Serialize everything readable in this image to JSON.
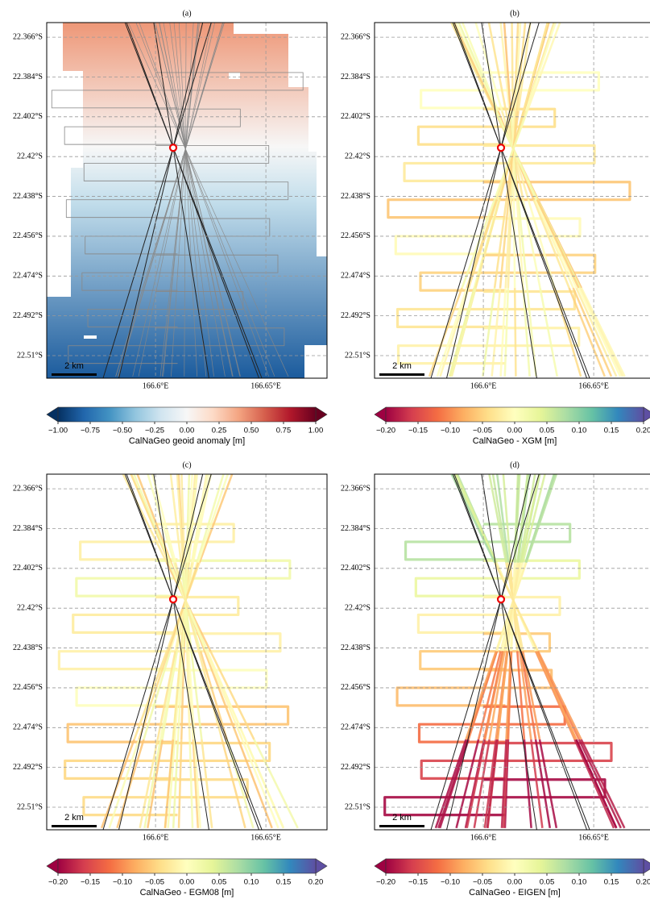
{
  "panels": [
    {
      "label": "(a)",
      "colorbar_label": "CalNaGeo geoid anomaly [m]",
      "colormap": "RdBu_r",
      "clim": [
        -1,
        1
      ],
      "colorbar_ticks": [
        {
          "value": -1,
          "label": "−1.00"
        },
        {
          "value": -0.75,
          "label": "−0.75"
        },
        {
          "value": -0.5,
          "label": "−0.50"
        },
        {
          "value": -0.25,
          "label": "−0.25"
        },
        {
          "value": 0,
          "label": "0.00"
        },
        0.25,
        {
          "value": 0.5,
          "label": "0.50"
        },
        0.75,
        {
          "value": 1,
          "label": "1.00"
        }
      ]
    },
    {
      "label": "(b)",
      "colorbar_label": "CalNaGeo - XGM [m]",
      "colormap": "Spectral",
      "clim": [
        -0.2,
        0.2
      ],
      "colorbar_ticks": [
        {
          "value": -0.2,
          "label": "−0.20"
        },
        {
          "value": -0.15,
          "label": "−0.15"
        },
        {
          "value": -0.1,
          "label": "−0.10"
        },
        {
          "value": -0.05,
          "label": "−0.05"
        },
        {
          "value": 0,
          "label": "0.00"
        },
        0.05,
        {
          "value": 0.1,
          "label": "0.10"
        },
        0.15,
        {
          "value": 0.2,
          "label": "0.20"
        }
      ]
    },
    {
      "label": "(c)",
      "colorbar_label": "CalNaGeo - EGM08 [m]",
      "colormap": "Spectral",
      "clim": [
        -0.2,
        0.2
      ],
      "colorbar_ticks": [
        {
          "value": -0.2,
          "label": "−0.20"
        },
        {
          "value": -0.15,
          "label": "−0.15"
        },
        {
          "value": -0.1,
          "label": "−0.10"
        },
        {
          "value": -0.05,
          "label": "−0.05"
        },
        {
          "value": 0,
          "label": "0.00"
        },
        0.05,
        {
          "value": 0.1,
          "label": "0.10"
        },
        0.15,
        {
          "value": 0.2,
          "label": "0.20"
        }
      ]
    },
    {
      "label": "(d)",
      "colorbar_label": "CalNaGeo - EIGEN [m]",
      "colormap": "Spectral",
      "clim": [
        -0.2,
        0.2
      ],
      "colorbar_ticks": [
        {
          "value": -0.2,
          "label": "−0.20"
        },
        {
          "value": -0.15,
          "label": "−0.15"
        },
        {
          "value": -0.1,
          "label": "−0.10"
        },
        {
          "value": -0.05,
          "label": "−0.05"
        },
        {
          "value": 0,
          "label": "0.00"
        },
        0.05,
        {
          "value": 0.1,
          "label": "0.10"
        },
        0.15,
        {
          "value": 0.2,
          "label": "0.20"
        }
      ]
    }
  ],
  "xlim": [
    166.5507,
    166.6777
  ],
  "ylim": [
    22.3594,
    22.5202
  ],
  "xticks": [
    {
      "value": 166.6,
      "label": "166.6°E"
    },
    {
      "value": 166.65,
      "label": "166.65°E"
    }
  ],
  "yticks": [
    {
      "value": 22.366,
      "label": "22.366°S"
    },
    {
      "value": 22.384,
      "label": "22.384°S"
    },
    {
      "value": 22.402,
      "label": "22.402°S"
    },
    {
      "value": 22.42,
      "label": "22.42°S"
    },
    {
      "value": 22.438,
      "label": "22.438°S"
    },
    {
      "value": 22.456,
      "label": "22.456°S"
    },
    {
      "value": 22.474,
      "label": "22.474°S"
    },
    {
      "value": 22.492,
      "label": "22.492°S"
    },
    {
      "value": 22.51,
      "label": "22.51°S"
    }
  ],
  "grid": true,
  "scale_bar": "2 km"
}
